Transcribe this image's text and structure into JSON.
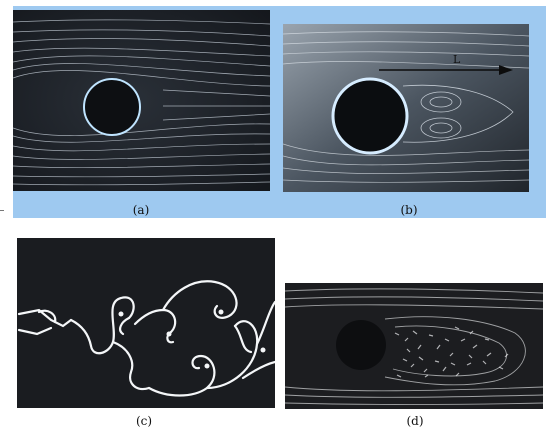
{
  "panels": [
    {
      "id": "a",
      "caption": "(a)"
    },
    {
      "id": "b",
      "caption": "(b)",
      "annotation": "L"
    },
    {
      "id": "c",
      "caption": "(c)"
    },
    {
      "id": "d",
      "caption": "(d)"
    }
  ],
  "colors": {
    "band": "#9ec9f0",
    "panel_background": "#1b1e24",
    "streak": "#d8dfe8",
    "cylinder_outline": "#bfe4ff"
  }
}
